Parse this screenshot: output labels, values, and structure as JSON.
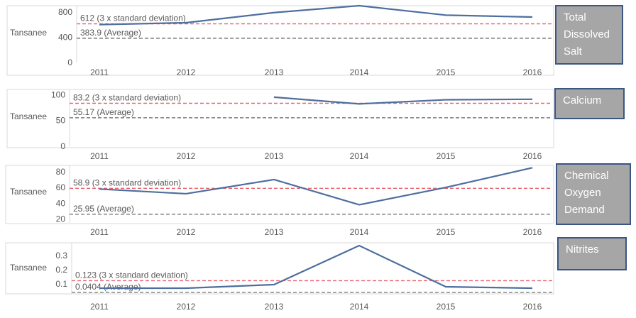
{
  "chart_data": [
    {
      "type": "line",
      "title": "Total Dissolved Salt",
      "ylabel": "Tansanee",
      "x": [
        "2011",
        "2012",
        "2013",
        "2014",
        "2015",
        "2016"
      ],
      "series": [
        {
          "values": [
            600,
            630,
            790,
            900,
            750,
            720
          ]
        }
      ],
      "ylim": [
        0,
        900
      ],
      "yticks": [
        0,
        400,
        800
      ],
      "reference_lines": [
        {
          "value": 612,
          "label": "612 (3 x standard deviation)",
          "color": "#e8606e"
        },
        {
          "value": 383.9,
          "label": "383.9 (Average)",
          "color": "#7a7a7a"
        }
      ]
    },
    {
      "type": "line",
      "title": "Calcium",
      "ylabel": "Tansanee",
      "x": [
        "2011",
        "2012",
        "2013",
        "2014",
        "2015",
        "2016"
      ],
      "series": [
        {
          "values": [
            null,
            null,
            95,
            82,
            90,
            91
          ]
        }
      ],
      "ylim": [
        0,
        110
      ],
      "yticks": [
        0,
        50,
        100
      ],
      "reference_lines": [
        {
          "value": 83.2,
          "label": "83.2 (3 x standard deviation)",
          "color": "#e8606e"
        },
        {
          "value": 55.17,
          "label": "55.17 (Average)",
          "color": "#7a7a7a"
        }
      ]
    },
    {
      "type": "line",
      "title": "Chemical Oxygen Demand",
      "ylabel": "Tansanee",
      "x": [
        "2011",
        "2012",
        "2013",
        "2014",
        "2015",
        "2016"
      ],
      "series": [
        {
          "values": [
            58,
            52,
            70,
            38,
            60,
            85
          ]
        }
      ],
      "ylim": [
        15,
        88
      ],
      "yticks": [
        20,
        40,
        60,
        80
      ],
      "reference_lines": [
        {
          "value": 58.9,
          "label": "58.9 (3 x standard deviation)",
          "color": "#e8606e"
        },
        {
          "value": 25.95,
          "label": "25.95 (Average)",
          "color": "#7a7a7a"
        }
      ]
    },
    {
      "type": "line",
      "title": "Nitrites",
      "ylabel": "Tansanee",
      "x": [
        "2011",
        "2012",
        "2013",
        "2014",
        "2015",
        "2016"
      ],
      "series": [
        {
          "values": [
            0.07,
            0.07,
            0.095,
            0.37,
            0.08,
            0.07
          ]
        }
      ],
      "ylim": [
        0.03,
        0.39
      ],
      "yticks": [
        0.1,
        0.2,
        0.3
      ],
      "reference_lines": [
        {
          "value": 0.123,
          "label": "0.123 (3 x standard deviation)",
          "color": "#e8606e"
        },
        {
          "value": 0.0404,
          "label": "0.0404 (Average)",
          "color": "#7a7a7a"
        }
      ]
    }
  ],
  "colors": {
    "line": "#4e6e9e",
    "badge_bg": "#a6a6a6",
    "badge_border": "#3b5683",
    "frame": "#d9d9d9"
  }
}
